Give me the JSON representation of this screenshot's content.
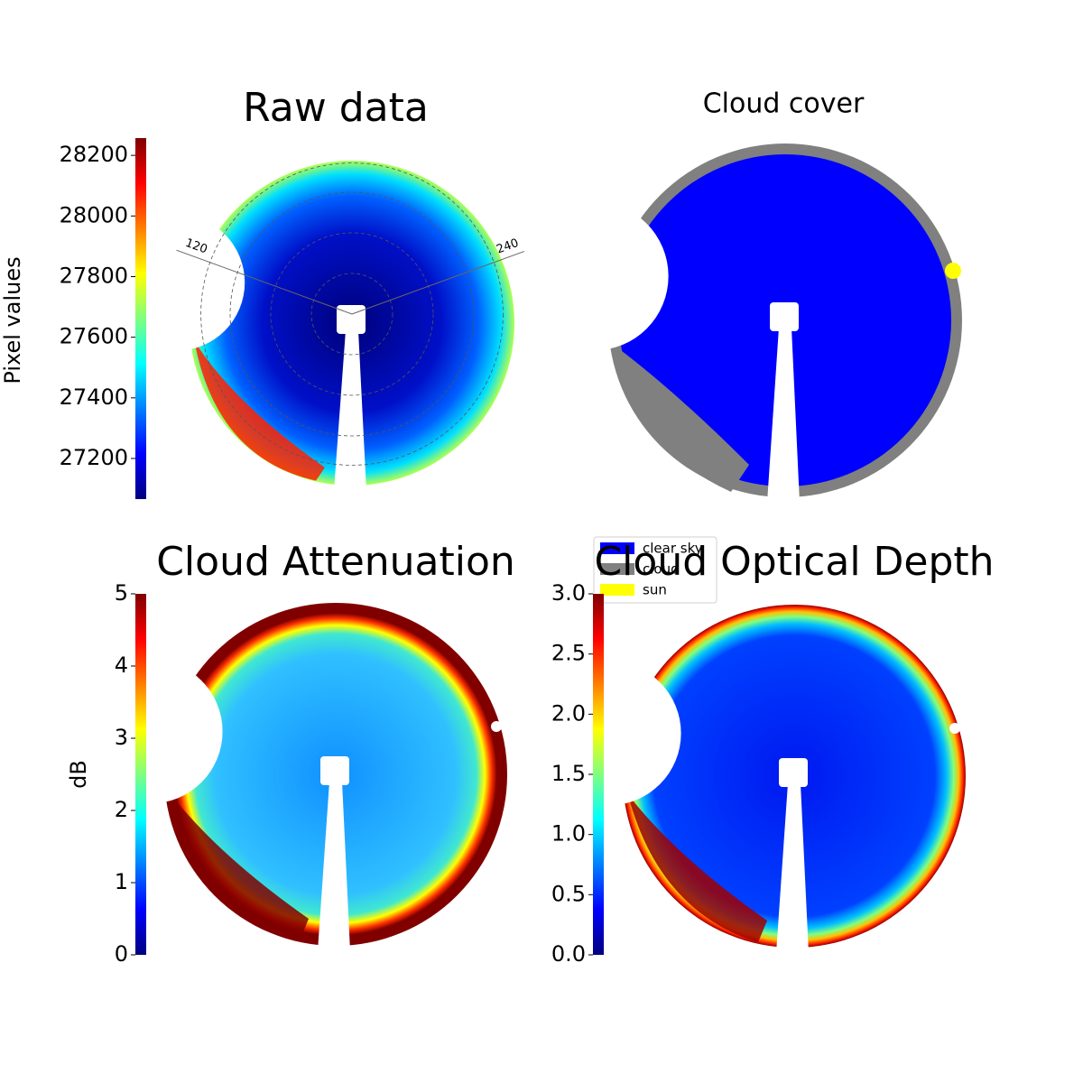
{
  "chart_data": [
    {
      "type": "image",
      "title": "Raw data",
      "colorbar_label": "Pixel values",
      "cmap": "jet",
      "clim": [
        27066,
        28257
      ],
      "cticks": [
        27200,
        27400,
        27600,
        27800,
        28000,
        28200
      ],
      "azimuth_labels": [
        "120",
        "240"
      ]
    },
    {
      "type": "image",
      "title": "Cloud cover",
      "legend": [
        {
          "name": "clear sky",
          "color": "#0000ff"
        },
        {
          "name": "cloud",
          "color": "#808080"
        },
        {
          "name": "sun",
          "color": "#ffff00"
        }
      ]
    },
    {
      "type": "image",
      "title": "Cloud Attenuation",
      "colorbar_label": "dB",
      "cmap": "jet",
      "clim": [
        0,
        5
      ],
      "cticks": [
        0,
        1,
        2,
        3,
        4,
        5
      ]
    },
    {
      "type": "image",
      "title": "Cloud Optical Depth",
      "cmap": "jet",
      "clim": [
        0,
        3
      ],
      "cticks": [
        {
          "value": 0,
          "label": "0.0"
        },
        {
          "value": 0.5,
          "label": "0.5"
        },
        {
          "value": 1,
          "label": "1.0"
        },
        {
          "value": 1.5,
          "label": "1.5"
        },
        {
          "value": 2,
          "label": "2.0"
        },
        {
          "value": 2.5,
          "label": "2.5"
        },
        {
          "value": 3,
          "label": "3.0"
        }
      ]
    }
  ]
}
